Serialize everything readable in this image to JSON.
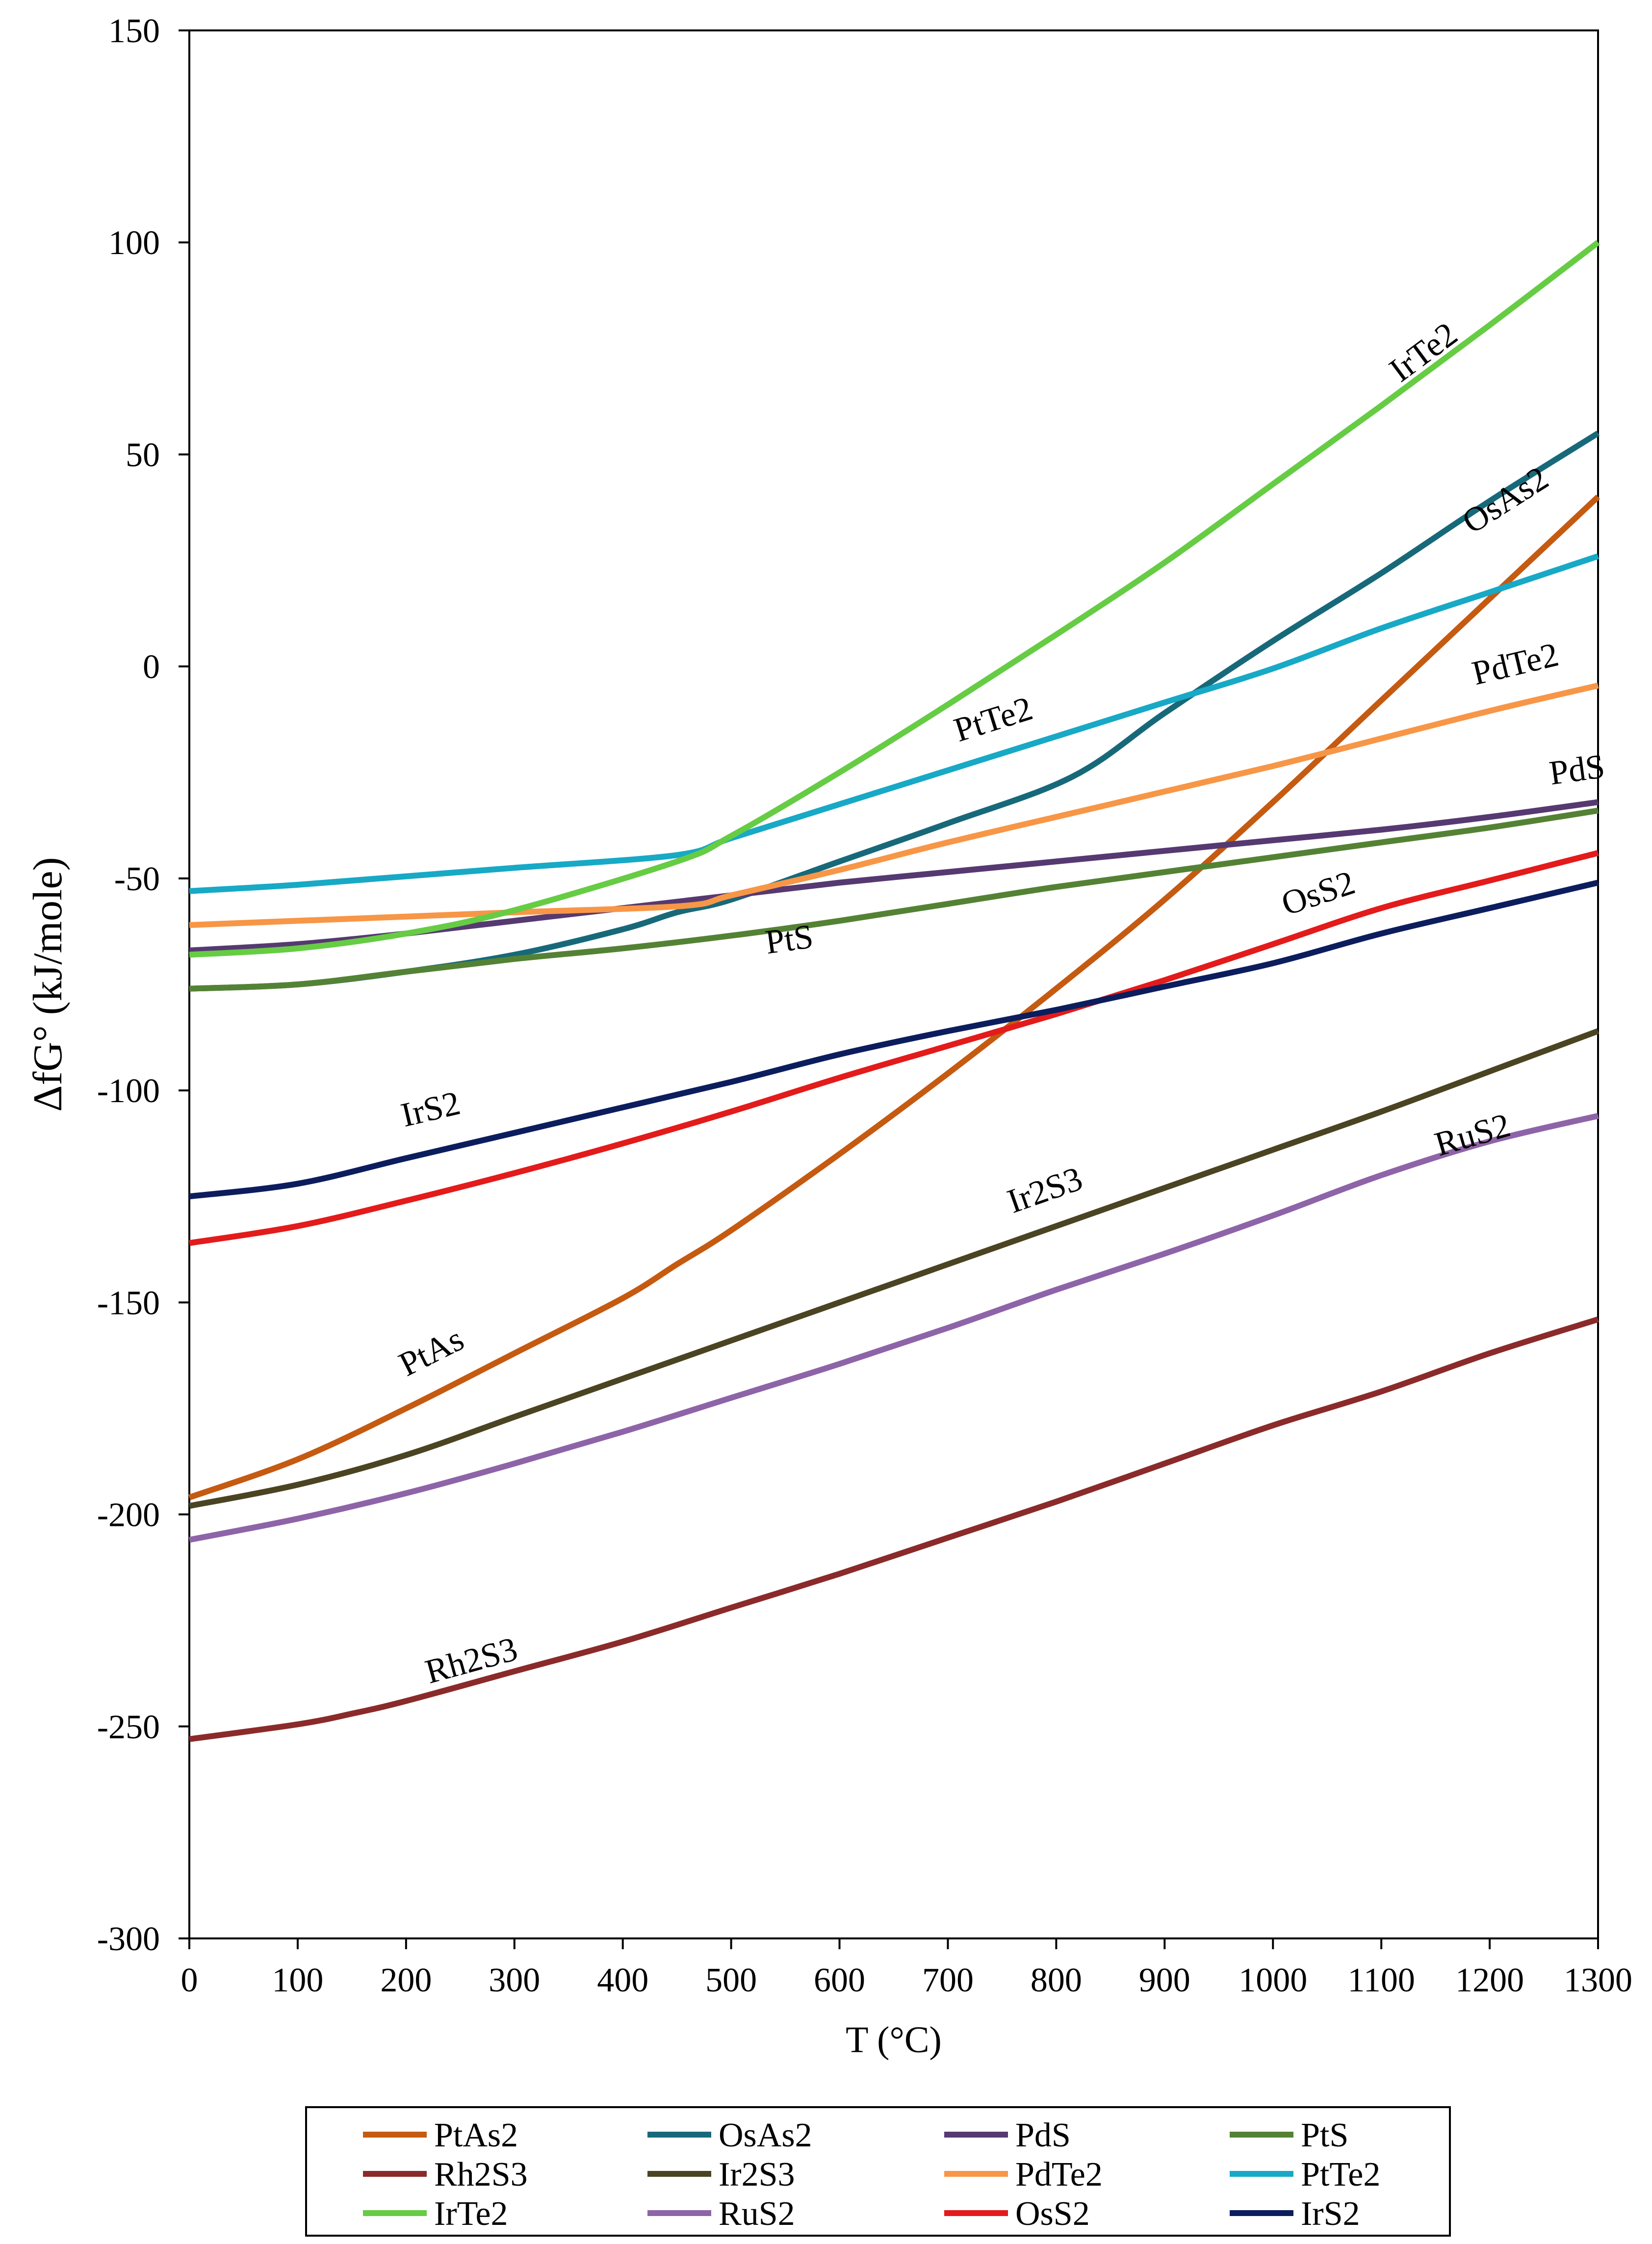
{
  "chart_data": {
    "type": "line",
    "title": "",
    "xlabel": "T (°C)",
    "ylabel": "ΔfG° (kJ/mole)",
    "xlim": [
      0,
      1300
    ],
    "ylim": [
      -300,
      150
    ],
    "xticks": [
      0,
      100,
      200,
      300,
      400,
      500,
      600,
      700,
      800,
      900,
      1000,
      1100,
      1200,
      1300
    ],
    "yticks": [
      150,
      100,
      50,
      0,
      -50,
      -100,
      -150,
      -200,
      -250,
      -300
    ],
    "grid": false,
    "legend_position": "bottom",
    "series": [
      {
        "name": "PtAs2",
        "color": "#C55A11",
        "x": [
          0,
          100,
          200,
          300,
          400,
          450,
          500,
          600,
          700,
          800,
          900,
          1000,
          1100,
          1200,
          1300
        ],
        "y": [
          -196,
          -187,
          -175,
          -162,
          -149,
          -141,
          -133,
          -115,
          -96,
          -76,
          -55,
          -32,
          -8,
          16,
          40
        ]
      },
      {
        "name": "OsAs2",
        "color": "#17697A",
        "x": [
          0,
          100,
          200,
          300,
          400,
          450,
          500,
          600,
          700,
          815,
          900,
          1000,
          1100,
          1200,
          1300
        ],
        "y": [
          -76,
          -75,
          -72,
          -68,
          -62,
          -58,
          -55,
          -46,
          -37,
          -26,
          -11,
          6,
          22,
          39,
          55
        ]
      },
      {
        "name": "PdS",
        "color": "#563971",
        "x": [
          0,
          100,
          200,
          300,
          400,
          500,
          600,
          700,
          800,
          900,
          1000,
          1100,
          1200,
          1300
        ],
        "y": [
          -67,
          -65.5,
          -63,
          -60,
          -57,
          -54,
          -51,
          -48.5,
          -46,
          -43.5,
          -41,
          -38.5,
          -35.5,
          -32
        ]
      },
      {
        "name": "PtS",
        "color": "#548235",
        "x": [
          0,
          100,
          200,
          300,
          400,
          500,
          600,
          700,
          800,
          900,
          1000,
          1100,
          1200,
          1300
        ],
        "y": [
          -76,
          -75,
          -72,
          -69,
          -66.5,
          -63.5,
          -60,
          -56,
          -52,
          -48.5,
          -45,
          -41.5,
          -38,
          -34
        ]
      },
      {
        "name": "Rh2S3",
        "color": "#8B2A2A",
        "x": [
          0,
          100,
          150,
          200,
          300,
          400,
          500,
          600,
          700,
          800,
          900,
          1000,
          1100,
          1200,
          1300
        ],
        "y": [
          -253,
          -249.5,
          -247,
          -244,
          -237,
          -230,
          -222,
          -214,
          -205.5,
          -197,
          -188,
          -179,
          -171,
          -162,
          -154
        ]
      },
      {
        "name": "Ir2S3",
        "color": "#4A4422",
        "x": [
          0,
          100,
          200,
          300,
          400,
          500,
          600,
          700,
          800,
          900,
          1000,
          1100,
          1200,
          1300
        ],
        "y": [
          -198,
          -193,
          -186,
          -177,
          -168,
          -159,
          -150,
          -141,
          -132,
          -123,
          -114,
          -105,
          -95.5,
          -86
        ]
      },
      {
        "name": "PdTe2",
        "color": "#F79646",
        "x": [
          0,
          100,
          200,
          300,
          455,
          500,
          600,
          700,
          800,
          900,
          1000,
          1100,
          1200,
          1300
        ],
        "y": [
          -61,
          -60,
          -59,
          -58,
          -56.5,
          -54,
          -48,
          -41.5,
          -35.5,
          -29.5,
          -23.5,
          -17,
          -10.5,
          -4.5
        ]
      },
      {
        "name": "PtTe2",
        "color": "#17A9C6",
        "x": [
          0,
          100,
          200,
          300,
          450,
          500,
          600,
          700,
          800,
          900,
          1000,
          1100,
          1200,
          1300
        ],
        "y": [
          -53,
          -51.5,
          -49.5,
          -47.5,
          -44.5,
          -40.5,
          -32.5,
          -24.5,
          -16.5,
          -8.5,
          -0.5,
          9,
          17.5,
          26
        ]
      },
      {
        "name": "IrTe2",
        "color": "#66CC44",
        "x": [
          0,
          100,
          200,
          300,
          450,
          500,
          600,
          700,
          800,
          900,
          1000,
          1100,
          1200,
          1300
        ],
        "y": [
          -68,
          -66.5,
          -63,
          -57.5,
          -46,
          -40,
          -25,
          -9,
          7.5,
          24.5,
          43,
          61.5,
          80.5,
          100
        ]
      },
      {
        "name": "RuS2",
        "color": "#8E64A8",
        "x": [
          0,
          100,
          200,
          300,
          400,
          500,
          600,
          700,
          800,
          900,
          1000,
          1100,
          1200,
          1300
        ],
        "y": [
          -206,
          -201,
          -195,
          -188,
          -180.5,
          -172.5,
          -164.5,
          -156,
          -147,
          -138.5,
          -129.5,
          -120,
          -112,
          -106
        ]
      },
      {
        "name": "OsS2",
        "color": "#E31B1B",
        "x": [
          0,
          100,
          200,
          300,
          400,
          500,
          600,
          700,
          800,
          900,
          1000,
          1100,
          1200,
          1300
        ],
        "y": [
          -136,
          -132,
          -126,
          -119.5,
          -112.5,
          -105,
          -97,
          -89.5,
          -82,
          -74,
          -65.5,
          -57,
          -50.5,
          -44
        ]
      },
      {
        "name": "IrS2",
        "color": "#0C1D5E",
        "x": [
          0,
          100,
          200,
          300,
          400,
          500,
          600,
          700,
          800,
          900,
          1000,
          1100,
          1200,
          1300
        ],
        "y": [
          -125,
          -122,
          -116,
          -110,
          -104,
          -98,
          -91.5,
          -86,
          -81,
          -75.5,
          -70,
          -63,
          -57,
          -51
        ]
      }
    ],
    "annotations": [
      {
        "text": "IrTe2",
        "x": 1145,
        "y": 72
      },
      {
        "text": "OsAs2",
        "x": 1220,
        "y": 37
      },
      {
        "text": "PtTe2",
        "x": 745,
        "y": -15
      },
      {
        "text": "PdTe2",
        "x": 1226,
        "y": -2
      },
      {
        "text": "PdS",
        "x": 1282,
        "y": -27
      },
      {
        "text": "OsS2",
        "x": 1045,
        "y": -56
      },
      {
        "text": "PtS",
        "x": 555,
        "y": -67
      },
      {
        "text": "IrS2",
        "x": 225,
        "y": -107
      },
      {
        "text": "Ir2S3",
        "x": 793,
        "y": -126
      },
      {
        "text": "RuS2",
        "x": 1187,
        "y": -113
      },
      {
        "text": "PtAs",
        "x": 228,
        "y": -164
      },
      {
        "text": "Rh2S3",
        "x": 263,
        "y": -237
      }
    ]
  }
}
